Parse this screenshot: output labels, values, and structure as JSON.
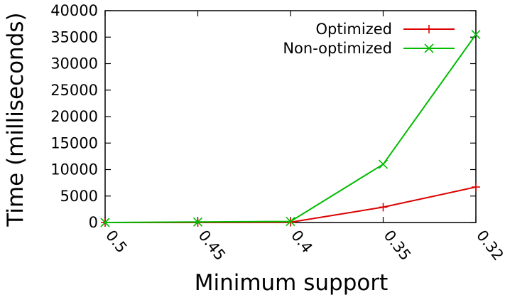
{
  "chart_data": {
    "type": "line",
    "xlabel": "Minimum support",
    "ylabel": "Time (milliseconds)",
    "ylim": [
      0,
      40000
    ],
    "yticks": [
      0,
      5000,
      10000,
      15000,
      20000,
      25000,
      30000,
      35000,
      40000
    ],
    "x": [
      "0.5",
      "0.45",
      "0.4",
      "0.35",
      "0.32"
    ],
    "grid": false,
    "legend_position": "top-right",
    "series": [
      {
        "name": "Optimized",
        "color": "#dd0000",
        "marker": "plus",
        "values": [
          0,
          0,
          50,
          2900,
          6700
        ]
      },
      {
        "name": "Non-optimized",
        "color": "#00bb00",
        "marker": "cross",
        "values": [
          0,
          100,
          200,
          11000,
          35500
        ]
      }
    ]
  }
}
